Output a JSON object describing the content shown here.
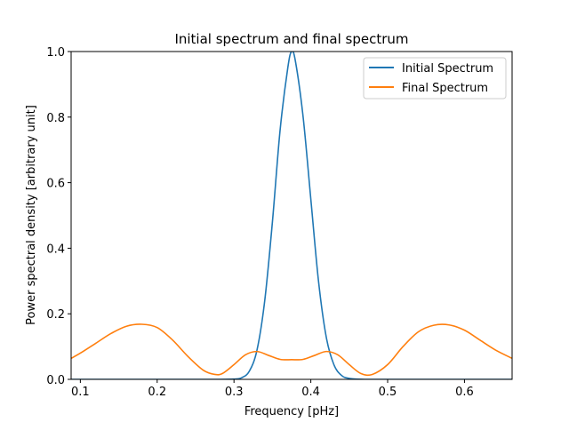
{
  "chart_data": {
    "type": "line",
    "title": "Initial spectrum and final spectrum",
    "xlabel": "Frequency [pHz]",
    "ylabel": "Power spectral density [arbitrary unit]",
    "xlim": [
      0.088,
      0.662
    ],
    "ylim": [
      0.0,
      1.0
    ],
    "x_ticks": [
      "0.1",
      "0.2",
      "0.3",
      "0.4",
      "0.5",
      "0.6"
    ],
    "x_tick_values": [
      0.1,
      0.2,
      0.3,
      0.4,
      0.5,
      0.6
    ],
    "y_ticks": [
      "0.0",
      "0.2",
      "0.4",
      "0.6",
      "0.8",
      "1.0"
    ],
    "y_tick_values": [
      0.0,
      0.2,
      0.4,
      0.6,
      0.8,
      1.0
    ],
    "grid": false,
    "legend_position": "upper right",
    "series": [
      {
        "name": "Initial Spectrum",
        "color": "#1f77b4",
        "x": [
          0.088,
          0.1,
          0.2,
          0.28,
          0.3,
          0.31,
          0.32,
          0.33,
          0.34,
          0.35,
          0.36,
          0.37,
          0.375,
          0.38,
          0.39,
          0.4,
          0.41,
          0.42,
          0.43,
          0.44,
          0.45,
          0.47,
          0.55,
          0.662
        ],
        "y": [
          0.0,
          0.0,
          0.0,
          0.0,
          0.001,
          0.005,
          0.025,
          0.09,
          0.24,
          0.48,
          0.76,
          0.95,
          1.0,
          0.97,
          0.8,
          0.55,
          0.3,
          0.13,
          0.045,
          0.012,
          0.003,
          0.0,
          0.0,
          0.0
        ]
      },
      {
        "name": "Final Spectrum",
        "color": "#ff7f0e",
        "x": [
          0.088,
          0.1,
          0.12,
          0.14,
          0.16,
          0.18,
          0.2,
          0.22,
          0.24,
          0.26,
          0.275,
          0.285,
          0.3,
          0.315,
          0.33,
          0.345,
          0.36,
          0.375,
          0.39,
          0.405,
          0.42,
          0.435,
          0.45,
          0.465,
          0.48,
          0.5,
          0.52,
          0.54,
          0.56,
          0.58,
          0.6,
          0.62,
          0.64,
          0.662
        ],
        "y": [
          0.064,
          0.08,
          0.11,
          0.14,
          0.162,
          0.168,
          0.158,
          0.12,
          0.07,
          0.028,
          0.015,
          0.018,
          0.045,
          0.075,
          0.085,
          0.073,
          0.061,
          0.06,
          0.061,
          0.073,
          0.085,
          0.075,
          0.045,
          0.018,
          0.015,
          0.045,
          0.1,
          0.145,
          0.165,
          0.166,
          0.15,
          0.12,
          0.09,
          0.064
        ]
      }
    ]
  }
}
